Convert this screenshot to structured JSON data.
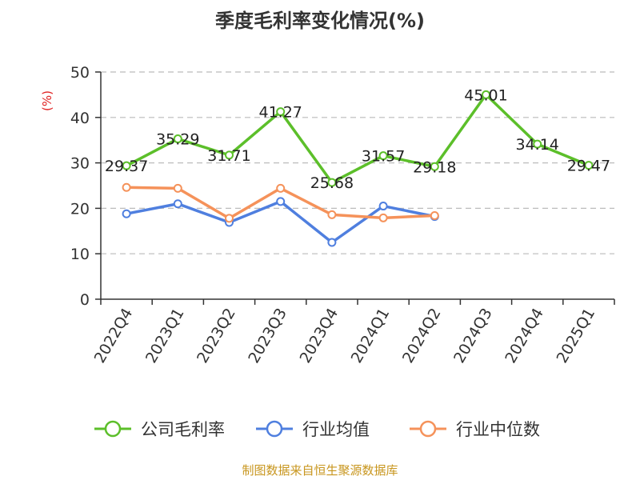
{
  "chart_data": {
    "type": "line",
    "title": "季度毛利率变化情况(%)",
    "ylabel": "(%)",
    "ylim": [
      0,
      50
    ],
    "yticks": [
      0,
      10,
      20,
      30,
      40,
      50
    ],
    "grid": "horizontal-dashed",
    "legend_position": "bottom",
    "categories": [
      "2022Q4",
      "2023Q1",
      "2023Q2",
      "2023Q3",
      "2023Q4",
      "2024Q1",
      "2024Q2",
      "2024Q3",
      "2024Q4",
      "2025Q1"
    ],
    "series": [
      {
        "name": "公司毛利率",
        "color": "#5cbf2a",
        "values": [
          29.37,
          35.29,
          31.71,
          41.27,
          25.68,
          31.57,
          29.18,
          45.01,
          34.14,
          29.47
        ],
        "labels": [
          "29.37",
          "35.29",
          "31.71",
          "41.27",
          "25.68",
          "31.57",
          "29.18",
          "45.01",
          "34.14",
          "29.47"
        ]
      },
      {
        "name": "行业均值",
        "color": "#4f7fdf",
        "values": [
          18.8,
          21.0,
          16.9,
          21.5,
          12.5,
          20.5,
          18.2,
          null,
          null,
          null
        ]
      },
      {
        "name": "行业中位数",
        "color": "#f5925a",
        "values": [
          24.6,
          24.4,
          17.8,
          24.4,
          18.6,
          17.9,
          18.4,
          null,
          null,
          null
        ]
      }
    ],
    "source": "制图数据来自恒生聚源数据库"
  }
}
